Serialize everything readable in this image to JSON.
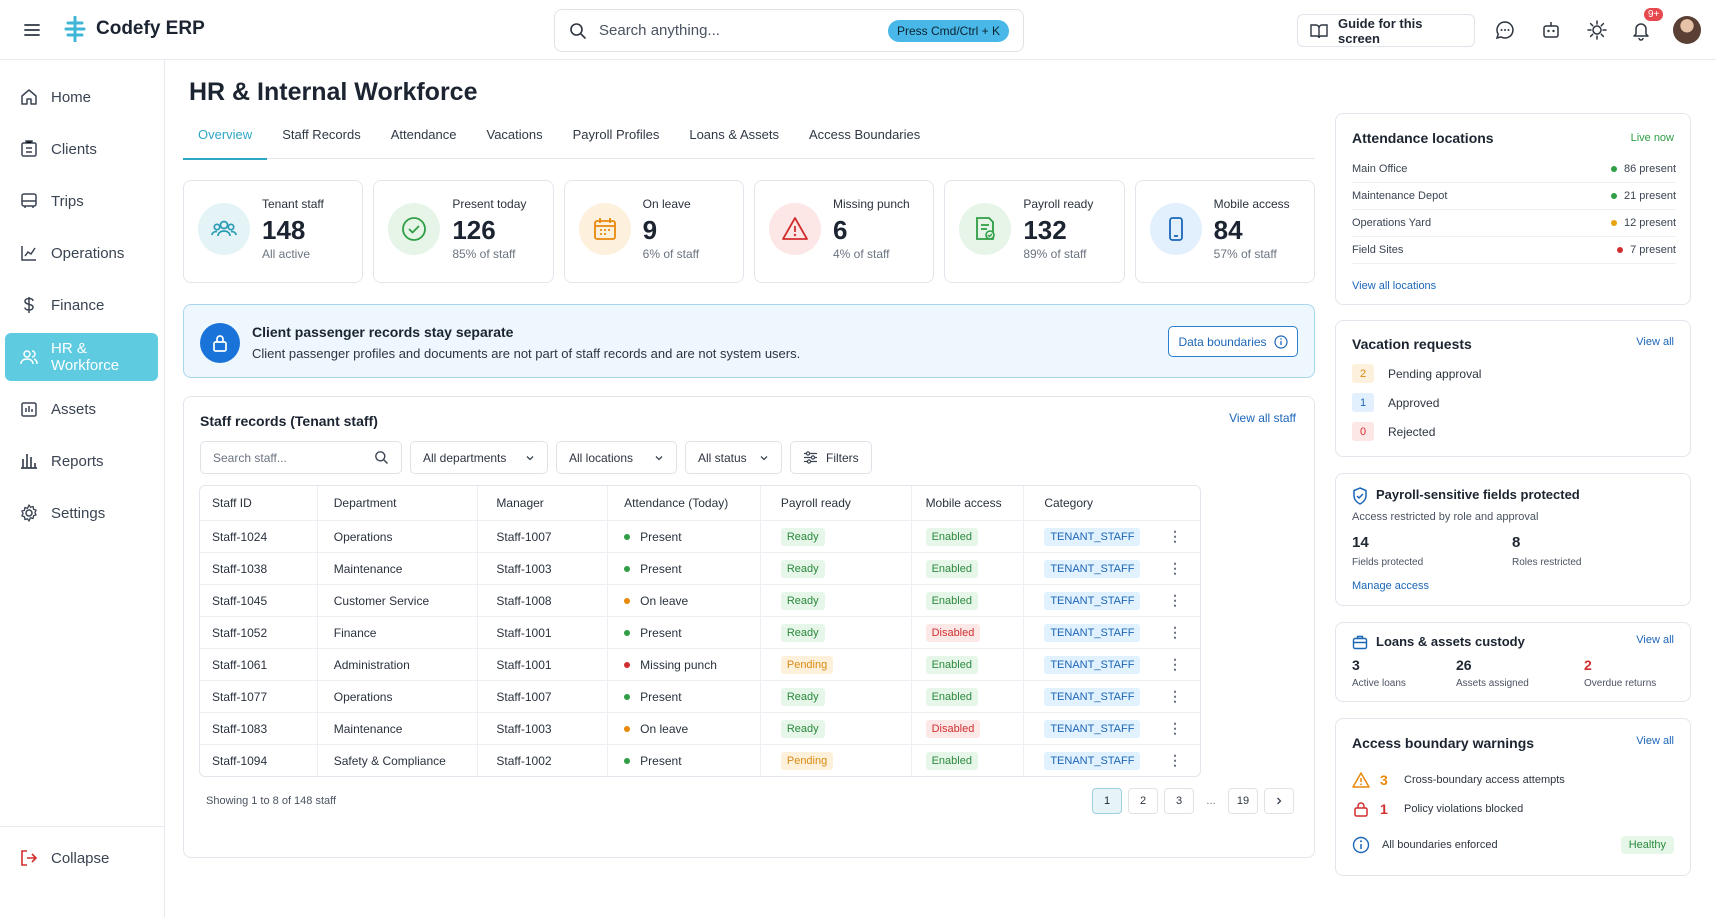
{
  "app": {
    "brand": "Codefy ERP"
  },
  "topbar": {
    "search_placeholder": "Search anything...",
    "shortcut": "Press Cmd/Ctrl + K",
    "guide_label": "Guide for this screen",
    "notifications_badge": "9+"
  },
  "sidebar": {
    "items": [
      {
        "label": "Home",
        "icon": "home-icon"
      },
      {
        "label": "Clients",
        "icon": "clients-icon"
      },
      {
        "label": "Trips",
        "icon": "bus-icon"
      },
      {
        "label": "Operations",
        "icon": "chart-line-icon"
      },
      {
        "label": "Finance",
        "icon": "dollar-icon"
      },
      {
        "label": "HR & Workforce",
        "icon": "users-icon",
        "active": true
      },
      {
        "label": "Assets",
        "icon": "assets-icon"
      },
      {
        "label": "Reports",
        "icon": "bar-chart-icon"
      },
      {
        "label": "Settings",
        "icon": "gear-icon"
      }
    ],
    "collapse_label": "Collapse"
  },
  "page": {
    "title": "HR & Internal Workforce",
    "tabs": [
      "Overview",
      "Staff Records",
      "Attendance",
      "Vacations",
      "Payroll Profiles",
      "Loans & Assets",
      "Access Boundaries"
    ],
    "active_tab": "Overview"
  },
  "kpis": [
    {
      "label": "Tenant staff",
      "value": "148",
      "sub": "All active",
      "color": "#2a9bb5",
      "bg": "#e3f3f6"
    },
    {
      "label": "Present today",
      "value": "126",
      "sub": "85% of staff",
      "color": "#2f9e44",
      "bg": "#e6f5e8"
    },
    {
      "label": "On leave",
      "value": "9",
      "sub": "6% of staff",
      "color": "#e8890c",
      "bg": "#fdf0dc"
    },
    {
      "label": "Missing punch",
      "value": "6",
      "sub": "4% of staff",
      "color": "#d12f2f",
      "bg": "#fde6e6"
    },
    {
      "label": "Payroll ready",
      "value": "132",
      "sub": "89% of staff",
      "color": "#2f9e44",
      "bg": "#e6f5e8"
    },
    {
      "label": "Mobile access",
      "value": "84",
      "sub": "57% of staff",
      "color": "#1c66b8",
      "bg": "#e2effc"
    }
  ],
  "notice": {
    "title": "Client passenger records stay separate",
    "desc": "Client passenger profiles and documents are not part of staff records and are not system users.",
    "button": "Data boundaries"
  },
  "staff": {
    "title": "Staff records (Tenant staff)",
    "view_all": "View all staff",
    "search_placeholder": "Search staff...",
    "filters": [
      "All departments",
      "All locations",
      "All status"
    ],
    "filters_button": "Filters",
    "columns": [
      "Staff ID",
      "Department",
      "Manager",
      "Attendance (Today)",
      "Payroll ready",
      "Mobile access",
      "Category"
    ],
    "rows": [
      {
        "id": "Staff-1024",
        "dept": "Operations",
        "manager": "Staff-1007",
        "att": "Present",
        "att_color": "#2f9e44",
        "payroll": "Ready",
        "mobile": "Enabled",
        "cat": "TENANT_STAFF"
      },
      {
        "id": "Staff-1038",
        "dept": "Maintenance",
        "manager": "Staff-1003",
        "att": "Present",
        "att_color": "#2f9e44",
        "payroll": "Ready",
        "mobile": "Enabled",
        "cat": "TENANT_STAFF"
      },
      {
        "id": "Staff-1045",
        "dept": "Customer Service",
        "manager": "Staff-1008",
        "att": "On leave",
        "att_color": "#e8890c",
        "payroll": "Ready",
        "mobile": "Enabled",
        "cat": "TENANT_STAFF"
      },
      {
        "id": "Staff-1052",
        "dept": "Finance",
        "manager": "Staff-1001",
        "att": "Present",
        "att_color": "#2f9e44",
        "payroll": "Ready",
        "mobile": "Disabled",
        "cat": "TENANT_STAFF"
      },
      {
        "id": "Staff-1061",
        "dept": "Administration",
        "manager": "Staff-1001",
        "att": "Missing punch",
        "att_color": "#d12f2f",
        "payroll": "Pending",
        "mobile": "Enabled",
        "cat": "TENANT_STAFF"
      },
      {
        "id": "Staff-1077",
        "dept": "Operations",
        "manager": "Staff-1007",
        "att": "Present",
        "att_color": "#2f9e44",
        "payroll": "Ready",
        "mobile": "Enabled",
        "cat": "TENANT_STAFF"
      },
      {
        "id": "Staff-1083",
        "dept": "Maintenance",
        "manager": "Staff-1003",
        "att": "On leave",
        "att_color": "#e8890c",
        "payroll": "Ready",
        "mobile": "Disabled",
        "cat": "TENANT_STAFF"
      },
      {
        "id": "Staff-1094",
        "dept": "Safety & Compliance",
        "manager": "Staff-1002",
        "att": "Present",
        "att_color": "#2f9e44",
        "payroll": "Pending",
        "mobile": "Enabled",
        "cat": "TENANT_STAFF"
      }
    ],
    "showing": "Showing 1 to 8 of 148 staff",
    "pages": [
      "1",
      "2",
      "3",
      "...",
      "19"
    ],
    "current_page": "1"
  },
  "attendance_locations": {
    "title": "Attendance locations",
    "live": "Live now",
    "rows": [
      {
        "name": "Main Office",
        "count": "86 present",
        "color": "#2f9e44"
      },
      {
        "name": "Maintenance Depot",
        "count": "21 present",
        "color": "#2f9e44"
      },
      {
        "name": "Operations Yard",
        "count": "12 present",
        "color": "#e8a20c"
      },
      {
        "name": "Field Sites",
        "count": "7 present",
        "color": "#d12f2f"
      }
    ],
    "view_all": "View all locations"
  },
  "vacation": {
    "title": "Vacation requests",
    "view_all": "View all",
    "rows": [
      {
        "count": "2",
        "label": "Pending approval",
        "bg": "#fdf0dc",
        "color": "#d98a12"
      },
      {
        "count": "1",
        "label": "Approved",
        "bg": "#e2effc",
        "color": "#1c66b8"
      },
      {
        "count": "0",
        "label": "Rejected",
        "bg": "#fde6e6",
        "color": "#d12f2f"
      }
    ]
  },
  "payroll_protect": {
    "title": "Payroll-sensitive fields protected",
    "sub": "Access restricted by role and approval",
    "stats": [
      {
        "value": "14",
        "label": "Fields protected"
      },
      {
        "value": "8",
        "label": "Roles restricted"
      }
    ],
    "link": "Manage access"
  },
  "loans": {
    "title": "Loans & assets custody",
    "view_all": "View all",
    "stats": [
      {
        "value": "3",
        "label": "Active loans",
        "color": "#1b2430"
      },
      {
        "value": "26",
        "label": "Assets assigned",
        "color": "#1b2430"
      },
      {
        "value": "2",
        "label": "Overdue returns",
        "color": "#d12f2f"
      }
    ]
  },
  "access_warnings": {
    "title": "Access boundary warnings",
    "view_all": "View all",
    "rows": [
      {
        "count": "3",
        "label": "Cross-boundary access attempts",
        "color": "#e8890c",
        "icon": "warning-icon"
      },
      {
        "count": "1",
        "label": "Policy violations blocked",
        "color": "#d12f2f",
        "icon": "lock-icon"
      }
    ],
    "footer": "All boundaries enforced",
    "status": "Healthy"
  }
}
